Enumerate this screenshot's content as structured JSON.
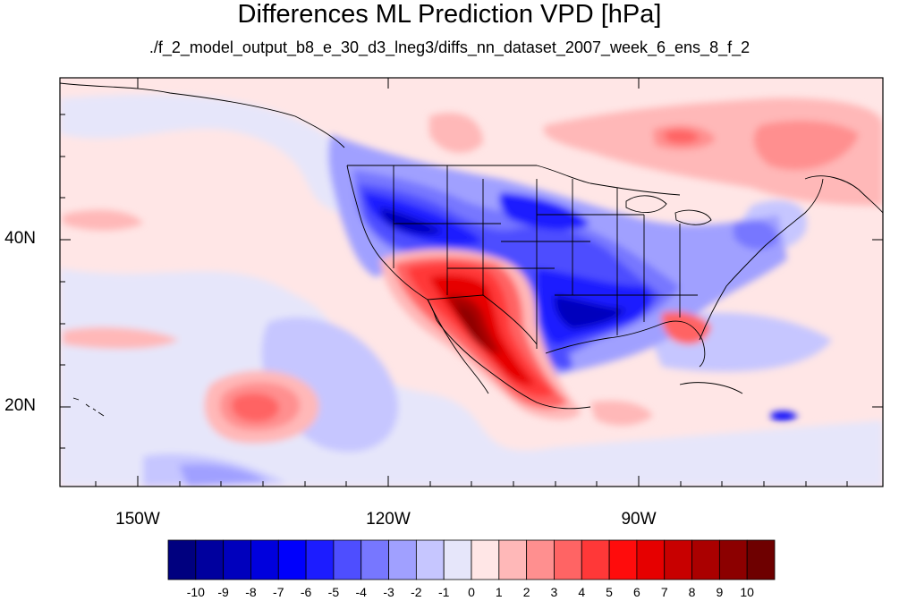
{
  "map": {
    "title": "Differences ML Prediction VPD [hPa]",
    "subtitle": "./f_2_model_output_b8_e_30_d3_lneg3/diffs_nn_dataset_2007_week_6_ens_8_f_2",
    "lon_labels": [
      "150W",
      "120W",
      "90W"
    ],
    "lat_labels": [
      "40N",
      "20N"
    ]
  },
  "colorbar": {
    "labels": [
      "-10",
      "-9",
      "-8",
      "-7",
      "-6",
      "-5",
      "-4",
      "-3",
      "-2",
      "-1",
      "0",
      "1",
      "2",
      "3",
      "4",
      "5",
      "6",
      "7",
      "8",
      "9",
      "10"
    ],
    "colors": [
      "#00007f",
      "#00009e",
      "#0000bd",
      "#0000dd",
      "#0000fc",
      "#1c1cff",
      "#4e4eff",
      "#7777ff",
      "#a0a0ff",
      "#c6c6ff",
      "#e6e6fa",
      "#ffe6e6",
      "#ffb8b8",
      "#ff8f8f",
      "#ff6464",
      "#ff3838",
      "#ff0c0c",
      "#e60000",
      "#c80000",
      "#aa0000",
      "#8c0000",
      "#6e0000"
    ]
  }
}
